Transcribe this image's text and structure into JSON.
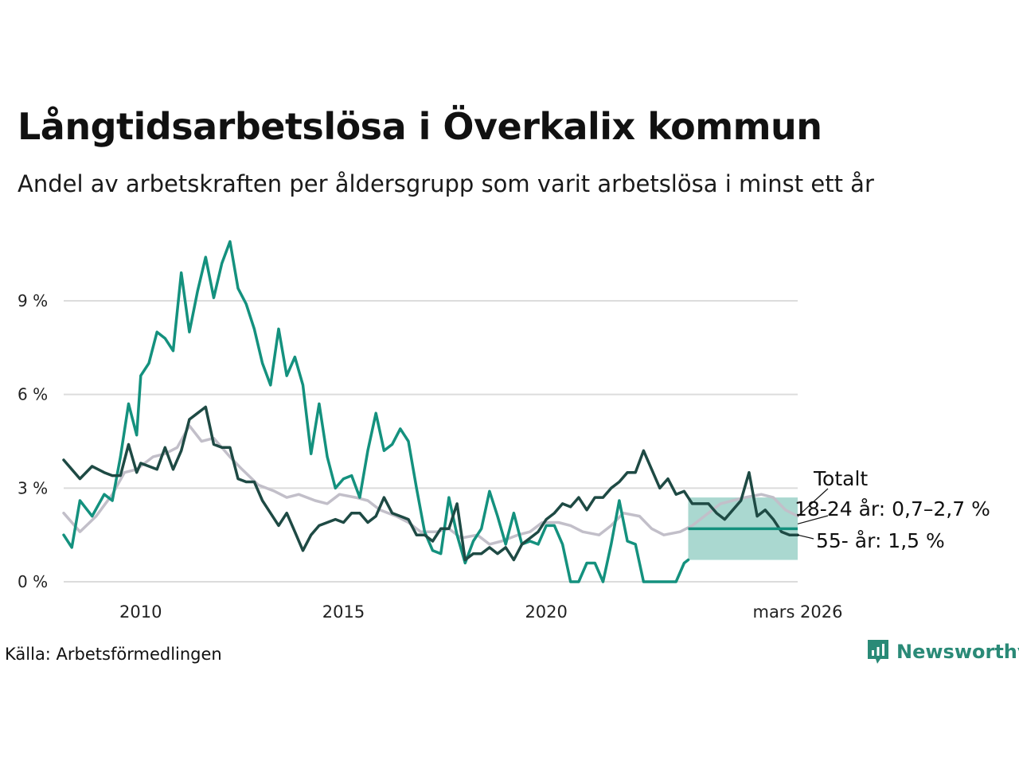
{
  "title": "Långtidsarbetslösa i Överkalix kommun",
  "subtitle": "Andel av arbetskraften per åldersgrupp som varit arbetslösa i minst ett år",
  "source": "Källa: Arbetsförmedlingen",
  "brand": "Newsworthy",
  "colors": {
    "young": "#14917e",
    "old": "#1e4a44",
    "total": "#c2bfc9",
    "band": "#a5d6cd",
    "grid": "#dcdcdc",
    "brand": "#2a8a77"
  },
  "chart_data": {
    "type": "line",
    "title": "Långtidsarbetslösa i Överkalix kommun",
    "ylim": [
      0,
      11
    ],
    "xlim": [
      2008.1,
      2026.2
    ],
    "yticks": [
      0,
      3,
      6,
      9
    ],
    "ytick_labels": [
      "0 %",
      "3 %",
      "6 %",
      "9 %"
    ],
    "xticks": [
      2010,
      2015,
      2020,
      2026.2
    ],
    "xtick_labels": [
      "2010",
      "2015",
      "2020",
      "mars 2026"
    ],
    "forecast_band": {
      "x_start": 2023.5,
      "x_end": 2026.2,
      "lower": 0.7,
      "upper": 2.7,
      "center": 1.7
    },
    "labels": {
      "total": "Totalt",
      "young": "18-24 år: 0,7–2,7 %",
      "old": "55- år: 1,5 %"
    },
    "series": [
      {
        "name": "Totalt",
        "key": "total",
        "x": [
          2008.1,
          2008.5,
          2008.9,
          2009.3,
          2009.6,
          2009.9,
          2010.3,
          2010.6,
          2010.9,
          2011.2,
          2011.5,
          2011.8,
          2012.2,
          2012.5,
          2012.9,
          2013.3,
          2013.6,
          2013.9,
          2014.3,
          2014.6,
          2014.9,
          2015.3,
          2015.6,
          2015.9,
          2016.3,
          2016.6,
          2016.9,
          2017.3,
          2017.6,
          2017.9,
          2018.3,
          2018.6,
          2018.9,
          2019.3,
          2019.6,
          2019.9,
          2020.3,
          2020.6,
          2020.9,
          2021.3,
          2021.6,
          2021.9,
          2022.3,
          2022.6,
          2022.9,
          2023.3,
          2023.6,
          2023.9,
          2024.3,
          2024.6,
          2024.9,
          2025.3,
          2025.6,
          2025.9,
          2026.2
        ],
        "values": [
          2.2,
          1.6,
          2.1,
          2.8,
          3.5,
          3.6,
          4.0,
          4.1,
          4.3,
          5.0,
          4.5,
          4.6,
          4.0,
          3.6,
          3.1,
          2.9,
          2.7,
          2.8,
          2.6,
          2.5,
          2.8,
          2.7,
          2.6,
          2.3,
          2.1,
          1.9,
          1.6,
          1.6,
          1.7,
          1.4,
          1.5,
          1.2,
          1.3,
          1.5,
          1.6,
          1.9,
          1.9,
          1.8,
          1.6,
          1.5,
          1.8,
          2.2,
          2.1,
          1.7,
          1.5,
          1.6,
          1.8,
          2.1,
          2.5,
          2.6,
          2.7,
          2.8,
          2.7,
          2.3,
          2.1
        ]
      },
      {
        "name": "18-24 år",
        "key": "young",
        "x": [
          2008.1,
          2008.3,
          2008.5,
          2008.8,
          2009.1,
          2009.3,
          2009.5,
          2009.7,
          2009.9,
          2010.0,
          2010.2,
          2010.4,
          2010.6,
          2010.8,
          2011.0,
          2011.2,
          2011.4,
          2011.6,
          2011.8,
          2012.0,
          2012.2,
          2012.4,
          2012.6,
          2012.8,
          2013.0,
          2013.2,
          2013.4,
          2013.6,
          2013.8,
          2014.0,
          2014.2,
          2014.4,
          2014.6,
          2014.8,
          2015.0,
          2015.2,
          2015.4,
          2015.6,
          2015.8,
          2016.0,
          2016.2,
          2016.4,
          2016.6,
          2016.8,
          2017.0,
          2017.2,
          2017.4,
          2017.6,
          2017.8,
          2018.0,
          2018.2,
          2018.4,
          2018.6,
          2018.8,
          2019.0,
          2019.2,
          2019.4,
          2019.6,
          2019.8,
          2020.0,
          2020.2,
          2020.4,
          2020.6,
          2020.8,
          2021.0,
          2021.2,
          2021.4,
          2021.6,
          2021.8,
          2022.0,
          2022.2,
          2022.4,
          2022.6,
          2022.8,
          2023.0,
          2023.2,
          2023.4,
          2023.5
        ],
        "values": [
          1.5,
          1.1,
          2.6,
          2.1,
          2.8,
          2.6,
          4.0,
          5.7,
          4.7,
          6.6,
          7.0,
          8.0,
          7.8,
          7.4,
          9.9,
          8.0,
          9.3,
          10.4,
          9.1,
          10.2,
          10.9,
          9.4,
          8.9,
          8.1,
          7.0,
          6.3,
          8.1,
          6.6,
          7.2,
          6.3,
          4.1,
          5.7,
          4.0,
          3.0,
          3.3,
          3.4,
          2.7,
          4.2,
          5.4,
          4.2,
          4.4,
          4.9,
          4.5,
          3.0,
          1.6,
          1.0,
          0.9,
          2.7,
          1.5,
          0.6,
          1.3,
          1.7,
          2.9,
          2.1,
          1.2,
          2.2,
          1.2,
          1.3,
          1.2,
          1.8,
          1.8,
          1.2,
          0.0,
          0.0,
          0.6,
          0.6,
          0.0,
          1.2,
          2.6,
          1.3,
          1.2,
          0.0,
          0.0,
          0.0,
          0.0,
          0.0,
          0.6,
          0.7
        ]
      },
      {
        "name": "55- år",
        "key": "old",
        "x": [
          2008.1,
          2008.3,
          2008.5,
          2008.8,
          2009.1,
          2009.3,
          2009.5,
          2009.7,
          2009.9,
          2010.0,
          2010.2,
          2010.4,
          2010.6,
          2010.8,
          2011.0,
          2011.2,
          2011.4,
          2011.6,
          2011.8,
          2012.0,
          2012.2,
          2012.4,
          2012.6,
          2012.8,
          2013.0,
          2013.2,
          2013.4,
          2013.6,
          2013.8,
          2014.0,
          2014.2,
          2014.4,
          2014.6,
          2014.8,
          2015.0,
          2015.2,
          2015.4,
          2015.6,
          2015.8,
          2016.0,
          2016.2,
          2016.4,
          2016.6,
          2016.8,
          2017.0,
          2017.2,
          2017.4,
          2017.6,
          2017.8,
          2018.0,
          2018.2,
          2018.4,
          2018.6,
          2018.8,
          2019.0,
          2019.2,
          2019.4,
          2019.6,
          2019.8,
          2020.0,
          2020.2,
          2020.4,
          2020.6,
          2020.8,
          2021.0,
          2021.2,
          2021.4,
          2021.6,
          2021.8,
          2022.0,
          2022.2,
          2022.4,
          2022.6,
          2022.8,
          2023.0,
          2023.2,
          2023.4,
          2023.6,
          2023.8,
          2024.0,
          2024.2,
          2024.4,
          2024.6,
          2024.8,
          2025.0,
          2025.2,
          2025.4,
          2025.6,
          2025.8,
          2026.0,
          2026.2
        ],
        "values": [
          3.9,
          3.6,
          3.3,
          3.7,
          3.5,
          3.4,
          3.4,
          4.4,
          3.5,
          3.8,
          3.7,
          3.6,
          4.3,
          3.6,
          4.2,
          5.2,
          5.4,
          5.6,
          4.4,
          4.3,
          4.3,
          3.3,
          3.2,
          3.2,
          2.6,
          2.2,
          1.8,
          2.2,
          1.6,
          1.0,
          1.5,
          1.8,
          1.9,
          2.0,
          1.9,
          2.2,
          2.2,
          1.9,
          2.1,
          2.7,
          2.2,
          2.1,
          2.0,
          1.5,
          1.5,
          1.3,
          1.7,
          1.7,
          2.5,
          0.7,
          0.9,
          0.9,
          1.1,
          0.9,
          1.1,
          0.7,
          1.2,
          1.4,
          1.6,
          2.0,
          2.2,
          2.5,
          2.4,
          2.7,
          2.3,
          2.7,
          2.7,
          3.0,
          3.2,
          3.5,
          3.5,
          4.2,
          3.6,
          3.0,
          3.3,
          2.8,
          2.9,
          2.5,
          2.5,
          2.5,
          2.2,
          2.0,
          2.3,
          2.6,
          3.5,
          2.1,
          2.3,
          2.0,
          1.6,
          1.5,
          1.5
        ]
      }
    ]
  }
}
